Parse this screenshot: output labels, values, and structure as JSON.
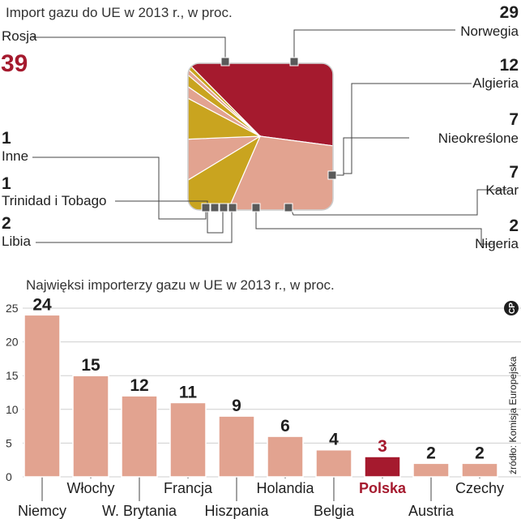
{
  "chart_data": [
    {
      "type": "pie",
      "title": "Import gazu do UE w 2013 r., w proc.",
      "slices": [
        {
          "label": "Rosja",
          "value": 39,
          "color": "#a51a2e"
        },
        {
          "label": "Norwegia",
          "value": 29,
          "color": "#e2a390"
        },
        {
          "label": "Algieria",
          "value": 12,
          "color": "#c9a41f"
        },
        {
          "label": "Nieokreślone",
          "value": 7,
          "color": "#e2a390"
        },
        {
          "label": "Katar",
          "value": 7,
          "color": "#c9a41f"
        },
        {
          "label": "Nigeria",
          "value": 2,
          "color": "#e2a390"
        },
        {
          "label": "Libia",
          "value": 2,
          "color": "#c9a41f"
        },
        {
          "label": "Trinidad i Tobago",
          "value": 1,
          "color": "#e2a390"
        },
        {
          "label": "Inne",
          "value": 1,
          "color": "#c9a41f"
        }
      ],
      "value_labels": {
        "Rosja": "39",
        "Norwegia": "29",
        "Algieria": "12",
        "Nieokreślone": "7",
        "Katar": "7",
        "Nigeria": "2",
        "Libia": "2",
        "Trinidad i Tobago": "1",
        "Inne": "1"
      }
    },
    {
      "type": "bar",
      "title": "Najwięksi importerzy gazu w UE w 2013 r., w proc.",
      "categories": [
        "Niemcy",
        "Włochy",
        "W. Brytania",
        "Francja",
        "Hiszpania",
        "Holandia",
        "Belgia",
        "Polska",
        "Austria",
        "Czechy"
      ],
      "values": [
        24,
        15,
        12,
        11,
        9,
        6,
        4,
        3,
        2,
        2
      ],
      "value_labels": [
        "24",
        "15",
        "12",
        "11",
        "9",
        "6",
        "4",
        "3",
        "2",
        "2"
      ],
      "highlight": "Polska",
      "colors": {
        "bar": "#e2a390",
        "highlight": "#a51a2e"
      },
      "ylim": [
        0,
        25
      ],
      "yticks": [
        "0",
        "5",
        "10",
        "15",
        "20",
        "25"
      ],
      "grid": true
    }
  ],
  "source": "źródło: Komisja Europejska",
  "logo_text": "CP"
}
